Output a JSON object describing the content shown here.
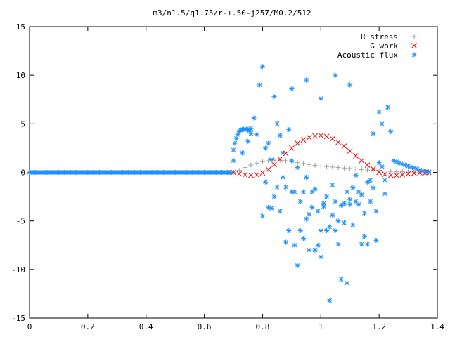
{
  "chart_data": {
    "type": "scatter",
    "title": "m3/n1.5/q1.75/r-+.50-j257/M0.2/512",
    "xlabel": "",
    "ylabel": "",
    "xlim": [
      0,
      1.4
    ],
    "ylim": [
      -15,
      15
    ],
    "x_ticks": [
      0,
      0.2,
      0.4,
      0.6,
      0.8,
      1,
      1.2,
      1.4
    ],
    "x_tick_labels": [
      "0",
      "0.2",
      "0.4",
      "0.6",
      "0.8",
      "1",
      "1.2",
      "1.4"
    ],
    "y_ticks": [
      -15,
      -10,
      -5,
      0,
      5,
      10,
      15
    ],
    "y_tick_labels": [
      "-15",
      "-10",
      "-5",
      "0",
      "5",
      "10",
      "15"
    ],
    "grid": false,
    "legend_position": "top-right",
    "series": [
      {
        "name": "R stress",
        "marker": "plus",
        "color": "#a0a0a0",
        "x": [
          0.7,
          0.72,
          0.74,
          0.76,
          0.78,
          0.8,
          0.82,
          0.84,
          0.86,
          0.88,
          0.9,
          0.92,
          0.94,
          0.96,
          0.98,
          1.0,
          1.02,
          1.04,
          1.06,
          1.08,
          1.1,
          1.12,
          1.14,
          1.16,
          1.18,
          1.2,
          1.22,
          1.24,
          1.26,
          1.28,
          1.3,
          1.32,
          1.34,
          1.36,
          1.37
        ],
        "y": [
          0.0,
          0.2,
          0.5,
          0.75,
          0.95,
          1.1,
          1.2,
          1.25,
          1.25,
          1.2,
          1.1,
          1.0,
          0.9,
          0.8,
          0.72,
          0.65,
          0.6,
          0.55,
          0.5,
          0.45,
          0.4,
          0.35,
          0.3,
          0.25,
          0.2,
          0.15,
          0.12,
          0.1,
          0.08,
          0.06,
          0.04,
          0.03,
          0.02,
          0.01,
          0.0
        ]
      },
      {
        "name": "G work",
        "marker": "cross",
        "color": "#ff0000",
        "x": [
          0.7,
          0.72,
          0.74,
          0.76,
          0.78,
          0.8,
          0.82,
          0.84,
          0.86,
          0.88,
          0.9,
          0.92,
          0.94,
          0.96,
          0.98,
          1.0,
          1.02,
          1.04,
          1.06,
          1.08,
          1.1,
          1.12,
          1.14,
          1.16,
          1.18,
          1.2,
          1.22,
          1.24,
          1.26,
          1.28,
          1.3,
          1.32,
          1.34,
          1.36,
          1.37
        ],
        "y": [
          0.0,
          -0.15,
          -0.25,
          -0.3,
          -0.25,
          -0.05,
          0.3,
          0.8,
          1.35,
          1.95,
          2.5,
          3.0,
          3.35,
          3.6,
          3.75,
          3.8,
          3.7,
          3.45,
          3.1,
          2.7,
          2.2,
          1.7,
          1.2,
          0.75,
          0.35,
          0.0,
          -0.2,
          -0.3,
          -0.3,
          -0.25,
          -0.15,
          -0.08,
          -0.04,
          -0.01,
          0.0
        ]
      },
      {
        "name": "Acoustic flux",
        "marker": "star",
        "color": "#1e90ff",
        "x": [
          0.0,
          0.02,
          0.04,
          0.06,
          0.08,
          0.1,
          0.12,
          0.14,
          0.16,
          0.18,
          0.2,
          0.22,
          0.24,
          0.26,
          0.28,
          0.3,
          0.32,
          0.34,
          0.36,
          0.38,
          0.4,
          0.42,
          0.44,
          0.46,
          0.48,
          0.5,
          0.52,
          0.54,
          0.56,
          0.58,
          0.6,
          0.62,
          0.64,
          0.66,
          0.68,
          0.69,
          0.7,
          0.705,
          0.71,
          0.715,
          0.72,
          0.725,
          0.73,
          0.735,
          0.74,
          0.745,
          0.75,
          0.755,
          0.76,
          0.7,
          0.73,
          0.75,
          0.76,
          0.77,
          0.78,
          0.79,
          0.8,
          0.8,
          0.81,
          0.81,
          0.82,
          0.82,
          0.83,
          0.83,
          0.84,
          0.84,
          0.85,
          0.85,
          0.86,
          0.86,
          0.87,
          0.87,
          0.88,
          0.88,
          0.89,
          0.89,
          0.9,
          0.9,
          0.91,
          0.91,
          0.92,
          0.92,
          0.93,
          0.93,
          0.94,
          0.94,
          0.95,
          0.95,
          0.96,
          0.96,
          0.97,
          0.97,
          0.98,
          0.98,
          0.99,
          0.99,
          1.0,
          1.0,
          1.01,
          1.01,
          1.02,
          1.02,
          1.03,
          1.03,
          1.04,
          1.04,
          1.05,
          1.05,
          1.06,
          1.06,
          1.07,
          1.07,
          1.08,
          1.08,
          1.09,
          1.09,
          1.1,
          1.1,
          1.11,
          1.11,
          1.12,
          1.12,
          1.13,
          1.13,
          1.14,
          1.14,
          1.15,
          1.15,
          1.16,
          1.16,
          1.17,
          1.17,
          1.18,
          1.18,
          1.19,
          1.19,
          1.2,
          1.2,
          1.21,
          1.21,
          1.22,
          1.22,
          1.23,
          1.24,
          1.25,
          1.26,
          1.27,
          1.28,
          1.29,
          1.3,
          1.31,
          1.32,
          1.33,
          1.34,
          1.35,
          1.36,
          1.37,
          0.95,
          1.05,
          1.1,
          0.9,
          1.0
        ],
        "y": [
          0,
          0,
          0,
          0,
          0,
          0,
          0,
          0,
          0,
          0,
          0,
          0,
          0,
          0,
          0,
          0,
          0,
          0,
          0,
          0,
          0,
          0,
          0,
          0,
          0,
          0,
          0,
          0,
          0,
          0,
          0,
          0,
          0,
          0,
          0,
          0,
          2.3,
          3.0,
          3.5,
          3.9,
          4.2,
          4.35,
          4.4,
          4.45,
          4.45,
          4.45,
          4.4,
          4.3,
          4.0,
          1.2,
          2.0,
          3.2,
          4.5,
          5.6,
          3.9,
          9.0,
          10.9,
          -4.5,
          2.5,
          -1.0,
          3.0,
          -3.6,
          1.3,
          -3.7,
          7.8,
          -2.5,
          5.0,
          -1.5,
          3.8,
          -4.0,
          -0.5,
          2.0,
          -7.2,
          -1.5,
          4.4,
          -6.0,
          -2.0,
          1.2,
          -2.0,
          -7.5,
          -9.6,
          0.5,
          -3.0,
          -6.0,
          -6.8,
          -2.0,
          -4.8,
          -0.5,
          -4.3,
          -8.0,
          -2.0,
          -3.6,
          -8.0,
          -1.7,
          -4.0,
          -7.5,
          -8.7,
          -6.0,
          -3.5,
          -3.2,
          -6.0,
          -2.5,
          -13.2,
          -5.6,
          -4.4,
          -1.3,
          -6.0,
          -3.0,
          -5.0,
          -7.4,
          -3.4,
          -11.0,
          -3.2,
          -5.2,
          -2.0,
          -11.4,
          -3.3,
          -2.8,
          -1.6,
          -5.4,
          -3.0,
          -0.3,
          -3.3,
          -2.0,
          -7.4,
          -2.3,
          -4.2,
          -6.6,
          -7.4,
          -1.0,
          -0.8,
          -3.0,
          -1.6,
          4.0,
          -4.0,
          -7.0,
          1.0,
          6.2,
          0.6,
          5.0,
          -0.8,
          -2.2,
          6.7,
          4.2,
          1.2,
          1.1,
          0.95,
          0.85,
          0.75,
          0.65,
          0.55,
          0.45,
          0.35,
          0.25,
          0.15,
          0.1,
          0.05,
          9.5,
          10.0,
          9.0,
          8.6,
          7.6
        ]
      }
    ]
  }
}
